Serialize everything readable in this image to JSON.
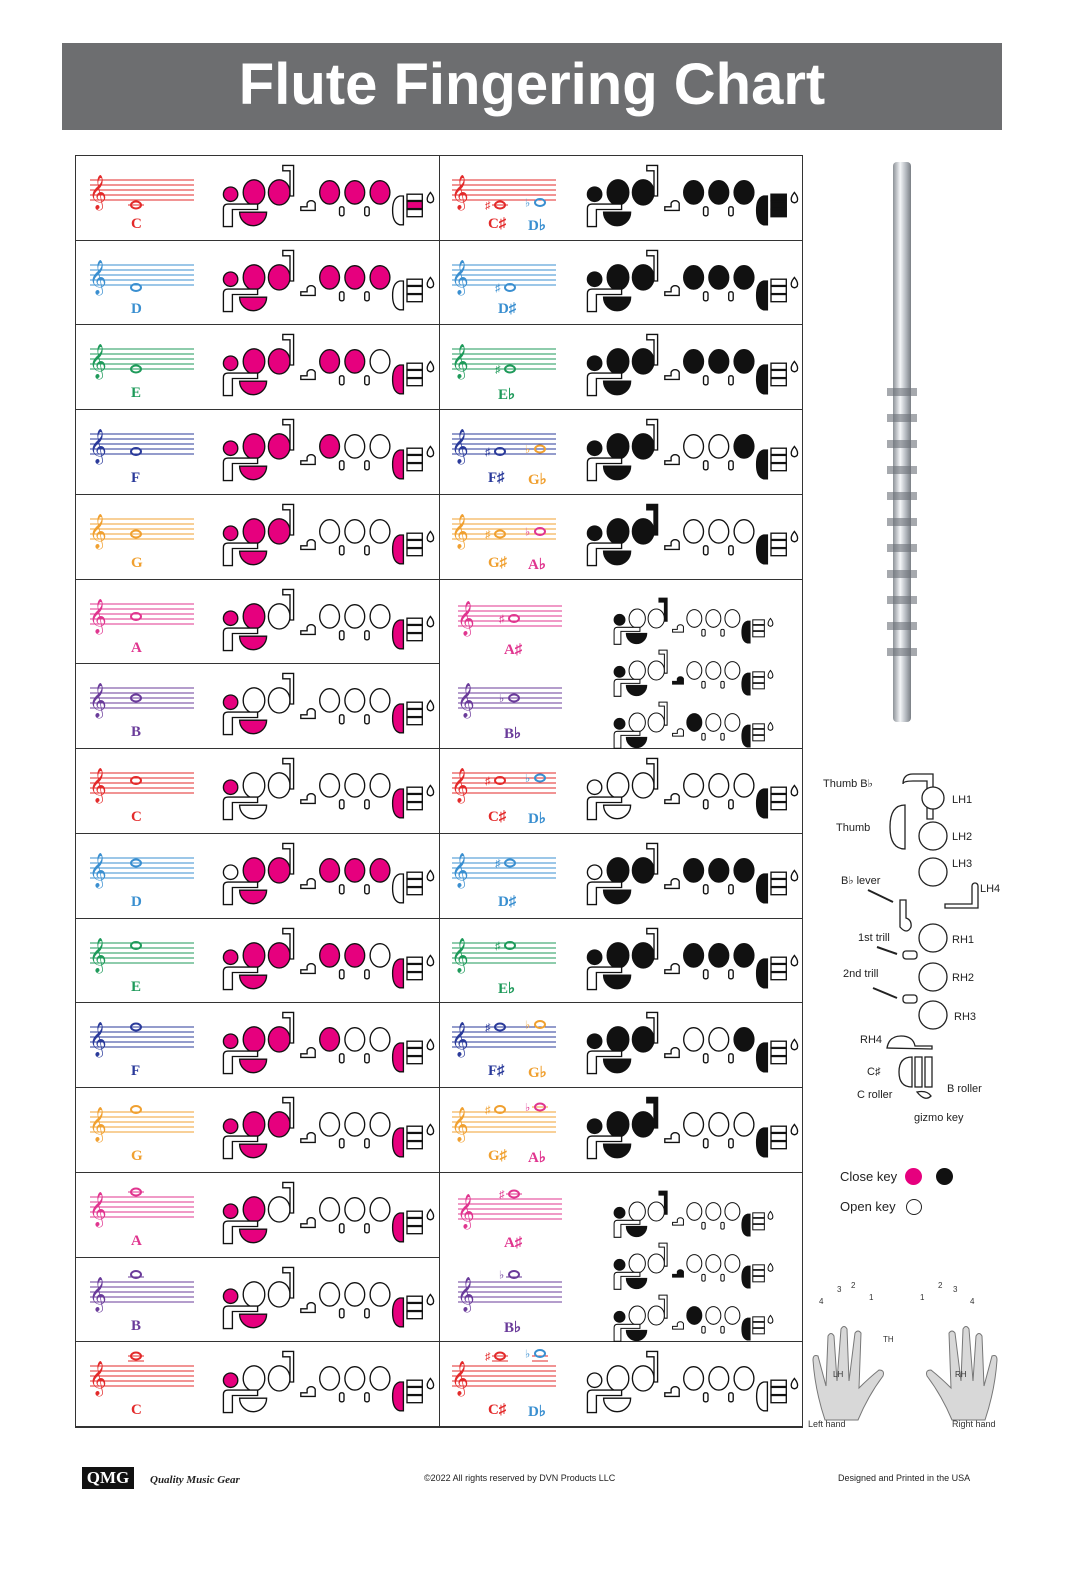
{
  "title": "Flute Fingering Chart",
  "colors": {
    "closed_left": "#e6007e",
    "closed_right": "#111111",
    "C": "#e32a2a",
    "D": "#3a8fd0",
    "E": "#1e9a5a",
    "F": "#2a3a9a",
    "G": "#f0a030",
    "A": "#e0358f",
    "B": "#6a3b9a"
  },
  "left": [
    {
      "label": "C",
      "deg": -2,
      "closed": [
        "LH1",
        "LH2",
        "LH3",
        "TH",
        "RH1",
        "RH2",
        "RH3",
        "RO2"
      ]
    },
    {
      "label": "D",
      "deg": -1,
      "closed": [
        "LH1",
        "LH2",
        "LH3",
        "TH",
        "RH1",
        "RH2",
        "RH3"
      ]
    },
    {
      "label": "E",
      "deg": 0,
      "closed": [
        "LH1",
        "LH2",
        "LH3",
        "TH",
        "RH1",
        "RH2",
        "RH4"
      ]
    },
    {
      "label": "F",
      "deg": 1,
      "closed": [
        "LH1",
        "LH2",
        "LH3",
        "TH",
        "RH1",
        "RH4"
      ]
    },
    {
      "label": "G",
      "deg": 2,
      "closed": [
        "LH1",
        "LH2",
        "LH3",
        "TH",
        "RH4"
      ]
    },
    {
      "label": "A",
      "deg": 3,
      "closed": [
        "LH1",
        "LH2",
        "TH",
        "RH4"
      ]
    },
    {
      "label": "B",
      "deg": 4,
      "closed": [
        "LH1",
        "TH",
        "RH4"
      ]
    },
    {
      "label": "C",
      "deg": 5,
      "closed": [
        "LH1",
        "RH4"
      ]
    },
    {
      "label": "D",
      "deg": 6,
      "closed": [
        "LH2",
        "LH3",
        "TH",
        "RH1",
        "RH2",
        "RH3"
      ]
    },
    {
      "label": "E",
      "deg": 7,
      "closed": [
        "LH1",
        "LH2",
        "LH3",
        "TH",
        "RH1",
        "RH2",
        "RH4"
      ]
    },
    {
      "label": "F",
      "deg": 8,
      "closed": [
        "LH1",
        "LH2",
        "LH3",
        "TH",
        "RH1",
        "RH4"
      ]
    },
    {
      "label": "G",
      "deg": 9,
      "closed": [
        "LH1",
        "LH2",
        "LH3",
        "TH",
        "RH4"
      ]
    },
    {
      "label": "A",
      "deg": 10,
      "closed": [
        "LH1",
        "LH2",
        "TH",
        "RH4"
      ]
    },
    {
      "label": "B",
      "deg": 11,
      "closed": [
        "LH1",
        "TH",
        "RH4"
      ]
    },
    {
      "label": "C",
      "deg": 12,
      "closed": [
        "LH1",
        "RH4"
      ]
    }
  ],
  "right": [
    {
      "sharp": "C♯",
      "flat": "D♭",
      "sc": "C",
      "fc": "D",
      "deg": -2,
      "closed": [
        "LH1",
        "LH2",
        "LH3",
        "TH",
        "RH1",
        "RH2",
        "RH3",
        "RH4",
        "RO1",
        "RO2",
        "RO3"
      ]
    },
    {
      "sharp": "D♯",
      "flat": "",
      "sc": "D",
      "fc": "D",
      "deg": -1,
      "closed": [
        "LH1",
        "LH2",
        "LH3",
        "TH",
        "RH1",
        "RH2",
        "RH3",
        "RH4"
      ]
    },
    {
      "sharp": "E♭",
      "flat": "",
      "sc": "E",
      "fc": "E",
      "deg": 0,
      "closed": [
        "LH1",
        "LH2",
        "LH3",
        "TH",
        "RH1",
        "RH2",
        "RH3",
        "RH4"
      ]
    },
    {
      "sharp": "F♯",
      "flat": "G♭",
      "sc": "F",
      "fc": "G",
      "deg": 1,
      "closed": [
        "LH1",
        "LH2",
        "LH3",
        "TH",
        "RH3",
        "RH4"
      ]
    },
    {
      "sharp": "G♯",
      "flat": "A♭",
      "sc": "G",
      "fc": "A",
      "deg": 2,
      "closed": [
        "LH1",
        "LH2",
        "LH3",
        "TH",
        "TB",
        "RH4"
      ]
    },
    {
      "sharp": "A♯",
      "flat": "B♭",
      "sc": "A",
      "fc": "B",
      "deg": 3,
      "merged": true,
      "alts": [
        [
          "LH1",
          "TB",
          "TH",
          "RH4"
        ],
        [
          "LH1",
          "TH",
          "LH4",
          "RH4"
        ],
        [
          "LH1",
          "TH",
          "RH1",
          "RH4"
        ]
      ]
    },
    {
      "sharp": "C♯",
      "flat": "D♭",
      "sc": "C",
      "fc": "D",
      "deg": 5,
      "closed": [
        "RH4"
      ]
    },
    {
      "sharp": "D♯",
      "flat": "",
      "sc": "D",
      "fc": "D",
      "deg": 6,
      "closed": [
        "LH2",
        "LH3",
        "TH",
        "RH1",
        "RH2",
        "RH3",
        "RH4"
      ]
    },
    {
      "sharp": "E♭",
      "flat": "",
      "sc": "E",
      "fc": "E",
      "deg": 7,
      "closed": [
        "LH1",
        "LH2",
        "LH3",
        "TH",
        "RH1",
        "RH2",
        "RH3",
        "RH4"
      ]
    },
    {
      "sharp": "F♯",
      "flat": "G♭",
      "sc": "F",
      "fc": "G",
      "deg": 8,
      "closed": [
        "LH1",
        "LH2",
        "LH3",
        "TH",
        "RH3",
        "RH4"
      ]
    },
    {
      "sharp": "G♯",
      "flat": "A♭",
      "sc": "G",
      "fc": "A",
      "deg": 9,
      "closed": [
        "LH1",
        "LH2",
        "LH3",
        "TH",
        "TB",
        "RH4"
      ]
    },
    {
      "sharp": "A♯",
      "flat": "B♭",
      "sc": "A",
      "fc": "B",
      "deg": 10,
      "merged": true,
      "alts": [
        [
          "LH1",
          "TB",
          "TH",
          "RH4"
        ],
        [
          "LH1",
          "TH",
          "LH4",
          "RH4"
        ],
        [
          "LH1",
          "TH",
          "RH1",
          "RH4"
        ]
      ]
    },
    {
      "sharp": "C♯",
      "flat": "D♭",
      "sc": "C",
      "fc": "D",
      "deg": 12,
      "closed": []
    }
  ],
  "key_diagram": {
    "labels": [
      "Thumb B♭",
      "Thumb",
      "LH1",
      "LH2",
      "LH3",
      "LH4",
      "B♭ lever",
      "1st trill",
      "RH1",
      "2nd trill",
      "RH2",
      "RH3",
      "RH4",
      "C♯",
      "C roller",
      "B roller",
      "gizmo key"
    ]
  },
  "legend": {
    "close": "Close key",
    "open": "Open key"
  },
  "hands": {
    "lh": "LH",
    "rh": "RH",
    "th": "TH",
    "left": "Left hand",
    "right": "Right hand",
    "fingers": [
      "1",
      "2",
      "3",
      "4"
    ]
  },
  "footer": {
    "logo": "QMG",
    "brand": "Quality Music Gear",
    "copyright": "©2022 All rights reserved by DVN Products LLC",
    "made": "Designed and Printed in the USA"
  }
}
